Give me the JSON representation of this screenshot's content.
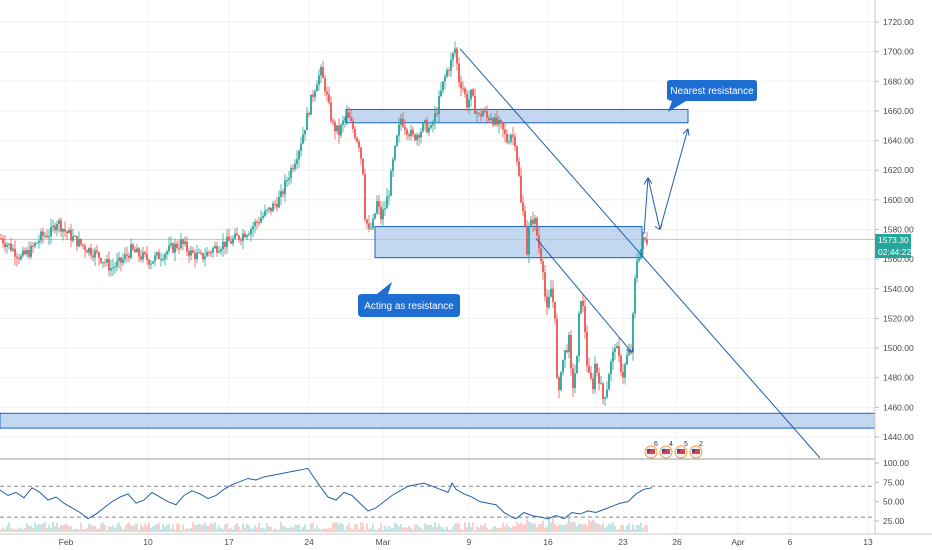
{
  "chart_data": [
    {
      "type": "candlestick",
      "title": "",
      "ylim": [
        1430,
        1730
      ],
      "y_ticks": [
        "1720.00",
        "1700.00",
        "1680.00",
        "1660.00",
        "1640.00",
        "1620.00",
        "1600.00",
        "1580.00",
        "1560.00",
        "1540.00",
        "1520.00",
        "1500.00",
        "1480.00",
        "1460.00",
        "1440.00"
      ],
      "x_ticks": [
        "Feb",
        "10",
        "17",
        "24",
        "Mar",
        "9",
        "16",
        "23",
        "26",
        "Apr",
        "6",
        "13"
      ],
      "last_price": "1573.30",
      "countdown": "02:44:22",
      "close_path": [
        [
          0,
          1574
        ],
        [
          5,
          1568
        ],
        [
          10,
          1561
        ],
        [
          15,
          1566
        ],
        [
          20,
          1575
        ],
        [
          25,
          1578
        ],
        [
          28,
          1586
        ],
        [
          32,
          1579
        ],
        [
          36,
          1574
        ],
        [
          42,
          1568
        ],
        [
          46,
          1565
        ],
        [
          50,
          1561
        ],
        [
          55,
          1554
        ],
        [
          60,
          1558
        ],
        [
          65,
          1566
        ],
        [
          70,
          1562
        ],
        [
          75,
          1559
        ],
        [
          80,
          1563
        ],
        [
          85,
          1567
        ],
        [
          90,
          1571
        ],
        [
          95,
          1564
        ],
        [
          100,
          1561
        ],
        [
          105,
          1566
        ],
        [
          110,
          1570
        ],
        [
          115,
          1572
        ],
        [
          120,
          1576
        ],
        [
          125,
          1581
        ],
        [
          130,
          1588
        ],
        [
          135,
          1594
        ],
        [
          140,
          1602
        ],
        [
          143,
          1614
        ],
        [
          146,
          1624
        ],
        [
          149,
          1635
        ],
        [
          152,
          1650
        ],
        [
          155,
          1667
        ],
        [
          158,
          1681
        ],
        [
          160,
          1686
        ],
        [
          162,
          1676
        ],
        [
          164,
          1662
        ],
        [
          166,
          1650
        ],
        [
          169,
          1645
        ],
        [
          171,
          1652
        ],
        [
          173,
          1657
        ],
        [
          176,
          1648
        ],
        [
          179,
          1638
        ],
        [
          181,
          1620
        ],
        [
          182,
          1590
        ],
        [
          184,
          1578
        ],
        [
          186,
          1584
        ],
        [
          188,
          1598
        ],
        [
          190,
          1588
        ],
        [
          192,
          1595
        ],
        [
          194,
          1606
        ],
        [
          196,
          1625
        ],
        [
          198,
          1641
        ],
        [
          200,
          1655
        ],
        [
          203,
          1648
        ],
        [
          206,
          1642
        ],
        [
          209,
          1646
        ],
        [
          212,
          1650
        ],
        [
          215,
          1647
        ],
        [
          218,
          1661
        ],
        [
          221,
          1678
        ],
        [
          223,
          1687
        ],
        [
          225,
          1693
        ],
        [
          227,
          1702
        ],
        [
          229,
          1681
        ],
        [
          231,
          1676
        ],
        [
          233,
          1665
        ],
        [
          235,
          1671
        ],
        [
          237,
          1662
        ],
        [
          239,
          1656
        ],
        [
          241,
          1660
        ],
        [
          243,
          1655
        ],
        [
          245,
          1657
        ],
        [
          247,
          1652
        ],
        [
          250,
          1649
        ],
        [
          253,
          1640
        ],
        [
          255,
          1645
        ],
        [
          257,
          1640
        ],
        [
          258,
          1628
        ],
        [
          259,
          1615
        ],
        [
          260,
          1597
        ],
        [
          262,
          1586
        ],
        [
          263,
          1565
        ],
        [
          264,
          1580
        ],
        [
          266,
          1587
        ],
        [
          267,
          1585
        ],
        [
          269,
          1568
        ],
        [
          271,
          1555
        ],
        [
          272,
          1535
        ],
        [
          273,
          1524
        ],
        [
          275,
          1540
        ],
        [
          277,
          1523
        ],
        [
          278,
          1478
        ],
        [
          279,
          1468
        ],
        [
          280,
          1487
        ],
        [
          282,
          1497
        ],
        [
          284,
          1505
        ],
        [
          285,
          1483
        ],
        [
          286,
          1475
        ],
        [
          288,
          1492
        ],
        [
          289,
          1520
        ],
        [
          290,
          1535
        ],
        [
          291,
          1526
        ],
        [
          292,
          1512
        ],
        [
          293,
          1490
        ],
        [
          294,
          1480
        ],
        [
          296,
          1475
        ],
        [
          297,
          1489
        ],
        [
          299,
          1480
        ],
        [
          300,
          1473
        ],
        [
          301,
          1466
        ],
        [
          303,
          1474
        ],
        [
          304,
          1484
        ],
        [
          306,
          1495
        ],
        [
          307,
          1503
        ],
        [
          309,
          1492
        ],
        [
          310,
          1487
        ],
        [
          311,
          1482
        ],
        [
          313,
          1494
        ],
        [
          315,
          1498
        ],
        [
          316,
          1520
        ],
        [
          317,
          1545
        ],
        [
          318,
          1560
        ],
        [
          320,
          1567
        ],
        [
          321,
          1572
        ],
        [
          323,
          1573
        ]
      ],
      "rsi": {
        "ylim": [
          10,
          105
        ],
        "y_ticks": [
          "100.00",
          "75.00",
          "50.00",
          "25.00"
        ],
        "levels": [
          70,
          30
        ],
        "path": [
          [
            0,
            65
          ],
          [
            4,
            58
          ],
          [
            8,
            62
          ],
          [
            12,
            55
          ],
          [
            16,
            68
          ],
          [
            20,
            62
          ],
          [
            24,
            52
          ],
          [
            28,
            56
          ],
          [
            32,
            48
          ],
          [
            36,
            42
          ],
          [
            40,
            36
          ],
          [
            44,
            28
          ],
          [
            48,
            34
          ],
          [
            52,
            42
          ],
          [
            56,
            50
          ],
          [
            60,
            56
          ],
          [
            64,
            60
          ],
          [
            68,
            48
          ],
          [
            72,
            52
          ],
          [
            76,
            62
          ],
          [
            80,
            56
          ],
          [
            84,
            50
          ],
          [
            88,
            46
          ],
          [
            92,
            58
          ],
          [
            96,
            64
          ],
          [
            100,
            60
          ],
          [
            104,
            54
          ],
          [
            108,
            58
          ],
          [
            112,
            66
          ],
          [
            116,
            72
          ],
          [
            120,
            76
          ],
          [
            124,
            80
          ],
          [
            128,
            78
          ],
          [
            132,
            82
          ],
          [
            136,
            84
          ],
          [
            140,
            86
          ],
          [
            144,
            88
          ],
          [
            148,
            90
          ],
          [
            152,
            92
          ],
          [
            154,
            93
          ],
          [
            156,
            85
          ],
          [
            160,
            70
          ],
          [
            164,
            56
          ],
          [
            168,
            52
          ],
          [
            172,
            62
          ],
          [
            176,
            58
          ],
          [
            180,
            48
          ],
          [
            184,
            38
          ],
          [
            188,
            42
          ],
          [
            192,
            50
          ],
          [
            196,
            58
          ],
          [
            200,
            64
          ],
          [
            204,
            70
          ],
          [
            208,
            72
          ],
          [
            212,
            74
          ],
          [
            216,
            70
          ],
          [
            220,
            66
          ],
          [
            224,
            62
          ],
          [
            226,
            74
          ],
          [
            228,
            66
          ],
          [
            232,
            60
          ],
          [
            236,
            56
          ],
          [
            240,
            50
          ],
          [
            244,
            48
          ],
          [
            248,
            46
          ],
          [
            252,
            36
          ],
          [
            256,
            30
          ],
          [
            258,
            28
          ],
          [
            262,
            36
          ],
          [
            266,
            32
          ],
          [
            270,
            30
          ],
          [
            274,
            28
          ],
          [
            278,
            32
          ],
          [
            282,
            28
          ],
          [
            286,
            36
          ],
          [
            290,
            34
          ],
          [
            294,
            38
          ],
          [
            298,
            36
          ],
          [
            302,
            40
          ],
          [
            306,
            44
          ],
          [
            310,
            48
          ],
          [
            314,
            50
          ],
          [
            318,
            60
          ],
          [
            322,
            66
          ],
          [
            326,
            68
          ]
        ]
      },
      "annotations": [
        {
          "text": "Nearest resistance"
        },
        {
          "text": "Acting as resistance"
        }
      ],
      "zones": [
        {
          "low": 1652,
          "high": 1661
        },
        {
          "low": 1561,
          "high": 1582
        },
        {
          "low": 1446,
          "high": 1456
        }
      ],
      "event_flags": [
        "6",
        "4",
        "5",
        "2"
      ],
      "colors": {
        "up": "#26a69a",
        "down": "#ef5350",
        "zone_fill": "#a9c6ea",
        "zone_stroke": "#1e63c7",
        "line": "#1f5fad",
        "callout": "#1e6dd2",
        "price_tag": "#26a69a",
        "rsi": "#1f5fad"
      }
    }
  ]
}
